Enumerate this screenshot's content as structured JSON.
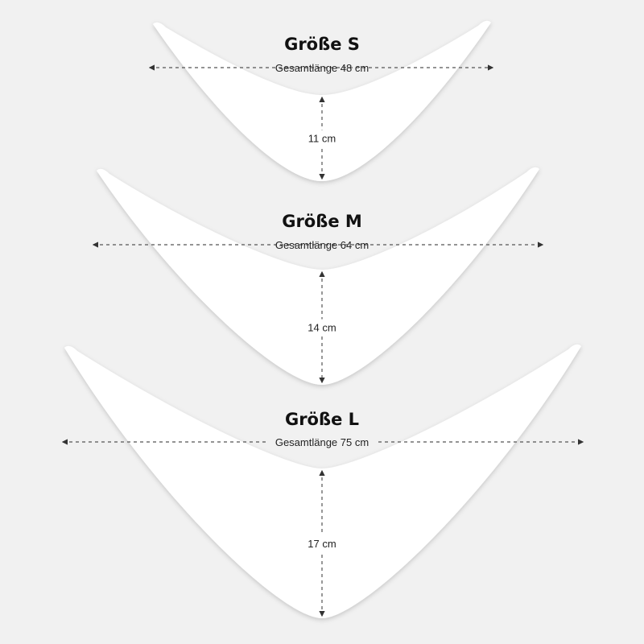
{
  "sizes": [
    {
      "title": "Größe S",
      "length_label": "Gesamtlänge 48 cm",
      "height_label": "11 cm"
    },
    {
      "title": "Größe M",
      "length_label": "Gesamtlänge 64 cm",
      "height_label": "14 cm"
    },
    {
      "title": "Größe L",
      "length_label": "Gesamtlänge 75 cm",
      "height_label": "17 cm"
    }
  ],
  "colors": {
    "background": "#f1f1f1",
    "shape": "#ffffff",
    "text": "#111111",
    "dashed_line": "#555555"
  }
}
